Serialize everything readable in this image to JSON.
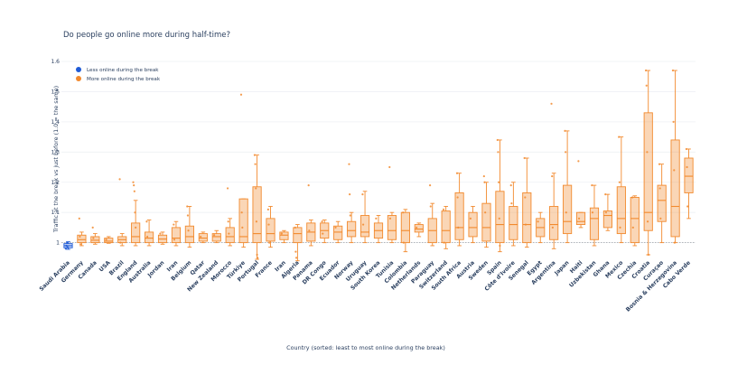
{
  "chart_data": {
    "type": "box",
    "title": "Do people go online more during half-time?",
    "xlabel": "Country (sorted: least to most online during the break)",
    "ylabel": "Traffic at the break vs just before  (1.0 = the same)",
    "ylim": [
      0.96,
      1.6
    ],
    "yticks": [
      "1",
      "1.1",
      "1.2",
      "1.3",
      "1.4",
      "1.5",
      "1.6"
    ],
    "reference_line": 1.0,
    "grid": true,
    "legend_position": "top-left",
    "legend": [
      {
        "label": "Less online during the break",
        "color": "#1f5bd6"
      },
      {
        "label": "More online during the break",
        "color": "#f28a2e"
      }
    ],
    "categories": [
      {
        "name": "Saudi Arabia",
        "group": "less",
        "q1": 0.983,
        "median": 0.99,
        "q3": 0.997,
        "lower": 0.978,
        "upper": 1.003,
        "points": [
          0.98,
          0.99,
          1.0,
          0.985
        ]
      },
      {
        "name": "Germany",
        "group": "more",
        "q1": 1.0,
        "median": 1.01,
        "q3": 1.025,
        "lower": 0.99,
        "upper": 1.035,
        "points": [
          1.08,
          1.02,
          0.995
        ]
      },
      {
        "name": "Canada",
        "group": "more",
        "q1": 1.0,
        "median": 1.008,
        "q3": 1.02,
        "lower": 0.995,
        "upper": 1.03,
        "points": [
          1.05,
          1.015
        ]
      },
      {
        "name": "USA",
        "group": "more",
        "q1": 1.0,
        "median": 1.005,
        "q3": 1.015,
        "lower": 0.998,
        "upper": 1.02,
        "points": [
          1.01
        ]
      },
      {
        "name": "Brazil",
        "group": "more",
        "q1": 1.0,
        "median": 1.01,
        "q3": 1.02,
        "lower": 0.99,
        "upper": 1.03,
        "points": [
          1.21,
          1.0
        ]
      },
      {
        "name": "England",
        "group": "more",
        "q1": 1.0,
        "median": 1.02,
        "q3": 1.065,
        "lower": 0.99,
        "upper": 1.14,
        "points": [
          1.2,
          1.19,
          1.17,
          1.1,
          1.05
        ]
      },
      {
        "name": "Australia",
        "group": "more",
        "q1": 1.0,
        "median": 1.015,
        "q3": 1.035,
        "lower": 0.99,
        "upper": 1.075,
        "points": [
          1.07,
          1.02
        ]
      },
      {
        "name": "Jordan",
        "group": "more",
        "q1": 1.0,
        "median": 1.012,
        "q3": 1.025,
        "lower": 0.995,
        "upper": 1.035,
        "points": [
          1.03
        ]
      },
      {
        "name": "Iran",
        "group": "more",
        "q1": 1.0,
        "median": 1.015,
        "q3": 1.05,
        "lower": 0.99,
        "upper": 1.07,
        "points": [
          1.06,
          1.01
        ]
      },
      {
        "name": "Belgium",
        "group": "more",
        "q1": 1.0,
        "median": 1.02,
        "q3": 1.055,
        "lower": 0.985,
        "upper": 1.12,
        "points": [
          1.12,
          1.09,
          1.04
        ]
      },
      {
        "name": "Qatar",
        "group": "more",
        "q1": 1.005,
        "median": 1.015,
        "q3": 1.03,
        "lower": 1.0,
        "upper": 1.035,
        "points": [
          1.02
        ]
      },
      {
        "name": "New Zealand",
        "group": "more",
        "q1": 1.005,
        "median": 1.02,
        "q3": 1.03,
        "lower": 1.0,
        "upper": 1.04,
        "points": [
          1.025
        ]
      },
      {
        "name": "Morocco",
        "group": "more",
        "q1": 1.0,
        "median": 1.02,
        "q3": 1.05,
        "lower": 0.99,
        "upper": 1.08,
        "points": [
          1.18,
          1.07,
          1.03
        ]
      },
      {
        "name": "Türkiye",
        "group": "more",
        "q1": 1.0,
        "median": 1.02,
        "q3": 1.145,
        "lower": 0.985,
        "upper": 1.145,
        "points": [
          1.49,
          1.1,
          1.05
        ]
      },
      {
        "name": "Portugal",
        "group": "more",
        "q1": 1.0,
        "median": 1.03,
        "q3": 1.185,
        "lower": 0.945,
        "upper": 1.29,
        "points": [
          1.29,
          1.26,
          1.18,
          1.07,
          0.96,
          0.95
        ]
      },
      {
        "name": "France",
        "group": "more",
        "q1": 1.005,
        "median": 1.03,
        "q3": 1.08,
        "lower": 0.985,
        "upper": 1.12,
        "points": [
          1.11,
          1.06,
          1.0
        ]
      },
      {
        "name": "Iran",
        "group": "more",
        "q1": 1.01,
        "median": 1.025,
        "q3": 1.035,
        "lower": 1.0,
        "upper": 1.04,
        "points": [
          1.03
        ]
      },
      {
        "name": "Algeria",
        "group": "more",
        "q1": 1.0,
        "median": 1.03,
        "q3": 1.05,
        "lower": 0.94,
        "upper": 1.06,
        "points": [
          1.05,
          0.97,
          0.95
        ]
      },
      {
        "name": "Panama",
        "group": "more",
        "q1": 1.005,
        "median": 1.035,
        "q3": 1.065,
        "lower": 0.99,
        "upper": 1.075,
        "points": [
          1.19,
          1.04
        ]
      },
      {
        "name": "DR Congo",
        "group": "more",
        "q1": 1.015,
        "median": 1.04,
        "q3": 1.065,
        "lower": 1.0,
        "upper": 1.075,
        "points": [
          1.07,
          1.03
        ]
      },
      {
        "name": "Ecuador",
        "group": "more",
        "q1": 1.01,
        "median": 1.035,
        "q3": 1.055,
        "lower": 1.0,
        "upper": 1.07,
        "points": [
          1.05
        ]
      },
      {
        "name": "Norway",
        "group": "more",
        "q1": 1.02,
        "median": 1.04,
        "q3": 1.07,
        "lower": 1.0,
        "upper": 1.1,
        "points": [
          1.26,
          1.16,
          1.09
        ]
      },
      {
        "name": "Uruguay",
        "group": "more",
        "q1": 1.02,
        "median": 1.035,
        "q3": 1.09,
        "lower": 1.0,
        "upper": 1.17,
        "points": [
          1.16,
          1.06
        ]
      },
      {
        "name": "South Korea",
        "group": "more",
        "q1": 1.015,
        "median": 1.04,
        "q3": 1.065,
        "lower": 1.0,
        "upper": 1.09,
        "points": [
          1.08
        ]
      },
      {
        "name": "Tunisia",
        "group": "more",
        "q1": 1.01,
        "median": 1.04,
        "q3": 1.09,
        "lower": 1.0,
        "upper": 1.1,
        "points": [
          1.25,
          1.08
        ]
      },
      {
        "name": "Colombia",
        "group": "more",
        "q1": 1.0,
        "median": 1.04,
        "q3": 1.1,
        "lower": 0.97,
        "upper": 1.11,
        "points": [
          1.1,
          1.0
        ]
      },
      {
        "name": "Netherlands",
        "group": "more",
        "q1": 1.035,
        "median": 1.045,
        "q3": 1.06,
        "lower": 1.02,
        "upper": 1.065,
        "points": [
          1.05
        ]
      },
      {
        "name": "Paraguay",
        "group": "more",
        "q1": 1.0,
        "median": 1.04,
        "q3": 1.08,
        "lower": 0.99,
        "upper": 1.13,
        "points": [
          1.19,
          1.12
        ]
      },
      {
        "name": "Switzerland",
        "group": "more",
        "q1": 1.0,
        "median": 1.04,
        "q3": 1.105,
        "lower": 0.98,
        "upper": 1.12,
        "points": [
          1.11,
          1.0
        ]
      },
      {
        "name": "South Africa",
        "group": "more",
        "q1": 1.01,
        "median": 1.05,
        "q3": 1.165,
        "lower": 0.99,
        "upper": 1.23,
        "points": [
          1.23,
          1.15,
          1.05
        ]
      },
      {
        "name": "Austria",
        "group": "more",
        "q1": 1.02,
        "median": 1.05,
        "q3": 1.1,
        "lower": 1.0,
        "upper": 1.12,
        "points": [
          1.08
        ]
      },
      {
        "name": "Sweden",
        "group": "more",
        "q1": 1.005,
        "median": 1.05,
        "q3": 1.13,
        "lower": 0.985,
        "upper": 1.2,
        "points": [
          1.22,
          1.2,
          1.1
        ]
      },
      {
        "name": "Spain",
        "group": "more",
        "q1": 1.0,
        "median": 1.06,
        "q3": 1.17,
        "lower": 0.97,
        "upper": 1.34,
        "points": [
          1.34,
          1.3,
          1.2,
          1.08,
          0.99
        ]
      },
      {
        "name": "Côte d'Ivoire",
        "group": "more",
        "q1": 1.01,
        "median": 1.06,
        "q3": 1.12,
        "lower": 0.99,
        "upper": 1.2,
        "points": [
          1.19,
          1.13
        ]
      },
      {
        "name": "Senegal",
        "group": "more",
        "q1": 1.0,
        "median": 1.06,
        "q3": 1.165,
        "lower": 0.985,
        "upper": 1.28,
        "points": [
          1.28,
          1.15,
          1.06
        ]
      },
      {
        "name": "Egypt",
        "group": "more",
        "q1": 1.02,
        "median": 1.05,
        "q3": 1.08,
        "lower": 1.0,
        "upper": 1.1,
        "points": [
          1.07
        ]
      },
      {
        "name": "Argentina",
        "group": "more",
        "q1": 1.01,
        "median": 1.06,
        "q3": 1.12,
        "lower": 0.98,
        "upper": 1.23,
        "points": [
          1.46,
          1.22,
          1.05
        ]
      },
      {
        "name": "Japan",
        "group": "more",
        "q1": 1.03,
        "median": 1.07,
        "q3": 1.19,
        "lower": 1.0,
        "upper": 1.37,
        "points": [
          1.37,
          1.3,
          1.1
        ]
      },
      {
        "name": "Haiti",
        "group": "more",
        "q1": 1.06,
        "median": 1.07,
        "q3": 1.1,
        "lower": 1.05,
        "upper": 1.1,
        "points": [
          1.27,
          1.08
        ]
      },
      {
        "name": "Uzbekistan",
        "group": "more",
        "q1": 1.01,
        "median": 1.08,
        "q3": 1.115,
        "lower": 0.99,
        "upper": 1.19,
        "points": [
          1.19,
          1.1
        ]
      },
      {
        "name": "Ghana",
        "group": "more",
        "q1": 1.05,
        "median": 1.09,
        "q3": 1.105,
        "lower": 1.04,
        "upper": 1.16,
        "points": [
          1.16,
          1.1
        ]
      },
      {
        "name": "Mexico",
        "group": "more",
        "q1": 1.03,
        "median": 1.08,
        "q3": 1.185,
        "lower": 1.0,
        "upper": 1.35,
        "points": [
          1.35,
          1.2,
          1.05
        ]
      },
      {
        "name": "Czechia",
        "group": "more",
        "q1": 1.0,
        "median": 1.08,
        "q3": 1.15,
        "lower": 0.99,
        "upper": 1.155,
        "points": [
          1.15,
          1.05
        ]
      },
      {
        "name": "Croatia",
        "group": "more",
        "q1": 1.04,
        "median": 1.1,
        "q3": 1.43,
        "lower": 0.96,
        "upper": 1.57,
        "points": [
          1.57,
          1.52,
          1.3,
          1.07,
          0.96
        ]
      },
      {
        "name": "Curaçao",
        "group": "more",
        "q1": 1.07,
        "median": 1.14,
        "q3": 1.19,
        "lower": 1.0,
        "upper": 1.26,
        "points": [
          1.26,
          1.18,
          1.08
        ]
      },
      {
        "name": "Bosnia & Herzegovina",
        "group": "more",
        "q1": 1.02,
        "median": 1.12,
        "q3": 1.34,
        "lower": 1.0,
        "upper": 1.57,
        "points": [
          1.57,
          1.4,
          1.24,
          1.0
        ]
      },
      {
        "name": "Cabo Verde",
        "group": "more",
        "q1": 1.165,
        "median": 1.22,
        "q3": 1.28,
        "lower": 1.08,
        "upper": 1.31,
        "points": [
          1.31,
          1.25,
          1.12
        ]
      }
    ]
  }
}
